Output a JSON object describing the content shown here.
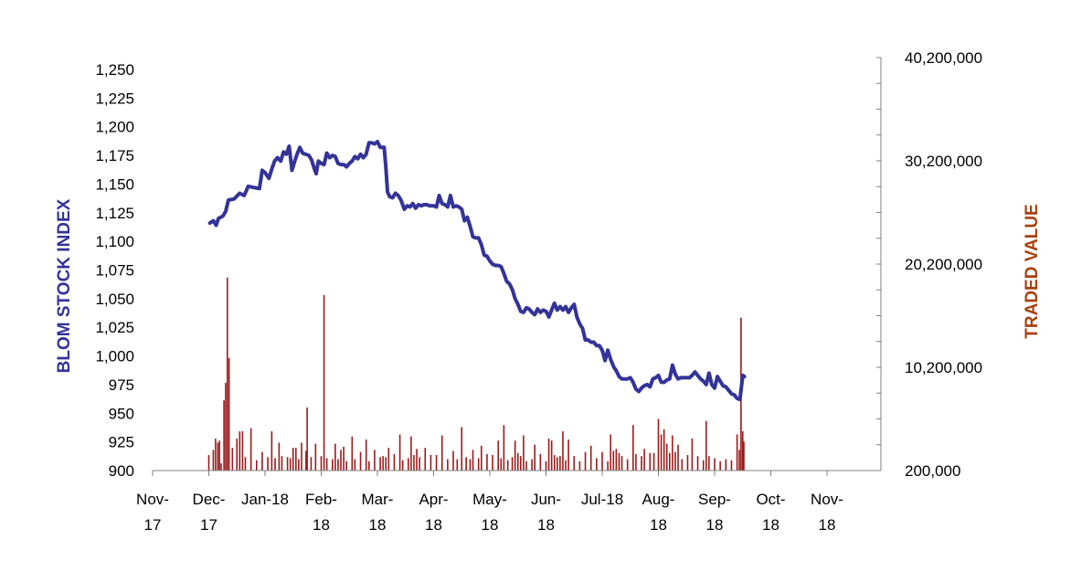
{
  "chart_data": {
    "type": "line+bar",
    "colors": {
      "index_line": "#333399",
      "volume_bars": "#9B1B1B",
      "left_title": "#333399",
      "right_title": "#A8400E",
      "axis": "#808080"
    },
    "x_tick_labels": [
      {
        "line1": "Nov-",
        "line2": "17"
      },
      {
        "line1": "Dec-",
        "line2": "17"
      },
      {
        "line1": "Jan-18",
        "line2": ""
      },
      {
        "line1": "Feb-",
        "line2": "18"
      },
      {
        "line1": "Mar-",
        "line2": "18"
      },
      {
        "line1": "Apr-",
        "line2": "18"
      },
      {
        "line1": "May-",
        "line2": "18"
      },
      {
        "line1": "Jun-",
        "line2": "18"
      },
      {
        "line1": "Jul-18",
        "line2": ""
      },
      {
        "line1": "Aug-",
        "line2": "18"
      },
      {
        "line1": "Sep-",
        "line2": "18"
      },
      {
        "line1": "Oct-",
        "line2": "18"
      },
      {
        "line1": "Nov-",
        "line2": "18"
      }
    ],
    "y_left": {
      "label": "BLOM STOCK INDEX",
      "range": [
        900,
        1250
      ],
      "ticks": [
        "900",
        "925",
        "950",
        "975",
        "1,000",
        "1,025",
        "1,050",
        "1,075",
        "1,100",
        "1,125",
        "1,150",
        "1,175",
        "1,200",
        "1,225",
        "1,250"
      ]
    },
    "y_right": {
      "label": "TRADED VALUE",
      "range": [
        200000,
        40200000
      ],
      "ticks": [
        "200,000",
        "10,200,000",
        "20,200,000",
        "30,200,000",
        "40,200,000"
      ]
    },
    "index_series": [
      [
        1.02,
        1116
      ],
      [
        1.08,
        1118
      ],
      [
        1.13,
        1114
      ],
      [
        1.17,
        1120
      ],
      [
        1.25,
        1122
      ],
      [
        1.3,
        1126
      ],
      [
        1.35,
        1136
      ],
      [
        1.45,
        1137
      ],
      [
        1.55,
        1142
      ],
      [
        1.63,
        1140
      ],
      [
        1.7,
        1148
      ],
      [
        1.8,
        1147
      ],
      [
        1.9,
        1146
      ],
      [
        1.95,
        1162
      ],
      [
        2.0,
        1160
      ],
      [
        2.07,
        1155
      ],
      [
        2.12,
        1163
      ],
      [
        2.17,
        1170
      ],
      [
        2.22,
        1173
      ],
      [
        2.28,
        1170
      ],
      [
        2.33,
        1178
      ],
      [
        2.38,
        1176
      ],
      [
        2.43,
        1183
      ],
      [
        2.48,
        1162
      ],
      [
        2.53,
        1170
      ],
      [
        2.57,
        1176
      ],
      [
        2.62,
        1182
      ],
      [
        2.67,
        1177
      ],
      [
        2.72,
        1176
      ],
      [
        2.78,
        1175
      ],
      [
        2.83,
        1171
      ],
      [
        2.88,
        1163
      ],
      [
        2.91,
        1159
      ],
      [
        2.95,
        1170
      ],
      [
        3.0,
        1168
      ],
      [
        3.05,
        1167
      ],
      [
        3.1,
        1177
      ],
      [
        3.15,
        1173
      ],
      [
        3.2,
        1175
      ],
      [
        3.25,
        1174
      ],
      [
        3.3,
        1168
      ],
      [
        3.35,
        1167
      ],
      [
        3.4,
        1167
      ],
      [
        3.45,
        1165
      ],
      [
        3.5,
        1168
      ],
      [
        3.55,
        1170
      ],
      [
        3.6,
        1174
      ],
      [
        3.65,
        1172
      ],
      [
        3.7,
        1176
      ],
      [
        3.75,
        1173
      ],
      [
        3.8,
        1176
      ],
      [
        3.85,
        1186
      ],
      [
        3.9,
        1186
      ],
      [
        3.95,
        1185
      ],
      [
        4.0,
        1187
      ],
      [
        4.05,
        1182
      ],
      [
        4.12,
        1182
      ],
      [
        4.15,
        1165
      ],
      [
        4.18,
        1143
      ],
      [
        4.22,
        1139
      ],
      [
        4.27,
        1138
      ],
      [
        4.32,
        1142
      ],
      [
        4.37,
        1140
      ],
      [
        4.42,
        1136
      ],
      [
        4.48,
        1128
      ],
      [
        4.53,
        1131
      ],
      [
        4.58,
        1130
      ],
      [
        4.63,
        1133
      ],
      [
        4.68,
        1129
      ],
      [
        4.73,
        1132
      ],
      [
        4.78,
        1131
      ],
      [
        4.83,
        1132
      ],
      [
        4.88,
        1132
      ],
      [
        4.93,
        1131
      ],
      [
        5.0,
        1131
      ],
      [
        5.05,
        1130
      ],
      [
        5.1,
        1140
      ],
      [
        5.15,
        1133
      ],
      [
        5.2,
        1132
      ],
      [
        5.25,
        1130
      ],
      [
        5.3,
        1140
      ],
      [
        5.35,
        1130
      ],
      [
        5.4,
        1131
      ],
      [
        5.45,
        1130
      ],
      [
        5.5,
        1128
      ],
      [
        5.55,
        1118
      ],
      [
        5.6,
        1121
      ],
      [
        5.65,
        1113
      ],
      [
        5.7,
        1104
      ],
      [
        5.75,
        1103
      ],
      [
        5.8,
        1103
      ],
      [
        5.85,
        1097
      ],
      [
        5.9,
        1088
      ],
      [
        5.95,
        1087
      ],
      [
        6.0,
        1083
      ],
      [
        6.05,
        1080
      ],
      [
        6.1,
        1079
      ],
      [
        6.15,
        1079
      ],
      [
        6.2,
        1078
      ],
      [
        6.25,
        1072
      ],
      [
        6.3,
        1065
      ],
      [
        6.35,
        1063
      ],
      [
        6.4,
        1058
      ],
      [
        6.45,
        1050
      ],
      [
        6.5,
        1045
      ],
      [
        6.55,
        1039
      ],
      [
        6.6,
        1038
      ],
      [
        6.65,
        1042
      ],
      [
        6.7,
        1041
      ],
      [
        6.75,
        1038
      ],
      [
        6.8,
        1036
      ],
      [
        6.85,
        1041
      ],
      [
        6.9,
        1038
      ],
      [
        6.95,
        1040
      ],
      [
        7.0,
        1039
      ],
      [
        7.05,
        1034
      ],
      [
        7.1,
        1040
      ],
      [
        7.15,
        1046
      ],
      [
        7.2,
        1040
      ],
      [
        7.25,
        1043
      ],
      [
        7.3,
        1040
      ],
      [
        7.35,
        1043
      ],
      [
        7.4,
        1038
      ],
      [
        7.45,
        1042
      ],
      [
        7.5,
        1045
      ],
      [
        7.55,
        1034
      ],
      [
        7.6,
        1028
      ],
      [
        7.65,
        1024
      ],
      [
        7.7,
        1014
      ],
      [
        7.75,
        1014
      ],
      [
        7.8,
        1012
      ],
      [
        7.85,
        1012
      ],
      [
        7.9,
        1009
      ],
      [
        7.95,
        1009
      ],
      [
        8.0,
        1005
      ],
      [
        8.05,
        996
      ],
      [
        8.1,
        1005
      ],
      [
        8.15,
        997
      ],
      [
        8.2,
        991
      ],
      [
        8.25,
        987
      ],
      [
        8.3,
        982
      ],
      [
        8.35,
        980
      ],
      [
        8.4,
        980
      ],
      [
        8.45,
        980
      ],
      [
        8.5,
        981
      ],
      [
        8.55,
        977
      ],
      [
        8.6,
        971
      ],
      [
        8.65,
        969
      ],
      [
        8.7,
        972
      ],
      [
        8.75,
        974
      ],
      [
        8.8,
        975
      ],
      [
        8.85,
        973
      ],
      [
        8.9,
        980
      ],
      [
        8.95,
        981
      ],
      [
        9.0,
        983
      ],
      [
        9.05,
        977
      ],
      [
        9.1,
        977
      ],
      [
        9.15,
        979
      ],
      [
        9.2,
        980
      ],
      [
        9.25,
        992
      ],
      [
        9.3,
        984
      ],
      [
        9.35,
        980
      ],
      [
        9.4,
        981
      ],
      [
        9.45,
        981
      ],
      [
        9.5,
        981
      ],
      [
        9.55,
        981
      ],
      [
        9.6,
        983
      ],
      [
        9.65,
        986
      ],
      [
        9.7,
        983
      ],
      [
        9.75,
        980
      ],
      [
        9.8,
        978
      ],
      [
        9.85,
        975
      ],
      [
        9.9,
        985
      ],
      [
        9.95,
        975
      ],
      [
        10.0,
        972
      ],
      [
        10.05,
        982
      ],
      [
        10.1,
        978
      ],
      [
        10.15,
        974
      ],
      [
        10.2,
        973
      ],
      [
        10.25,
        970
      ],
      [
        10.3,
        967
      ],
      [
        10.35,
        966
      ],
      [
        10.4,
        963
      ],
      [
        10.45,
        962
      ],
      [
        10.5,
        983
      ],
      [
        10.53,
        982
      ]
    ],
    "volume_series": [
      [
        1.0,
        1700000
      ],
      [
        1.08,
        2200000
      ],
      [
        1.12,
        3300000
      ],
      [
        1.16,
        2900000
      ],
      [
        1.19,
        3100000
      ],
      [
        1.22,
        900000
      ],
      [
        1.27,
        7000000
      ],
      [
        1.3,
        8700000
      ],
      [
        1.33,
        18900000
      ],
      [
        1.36,
        11100000
      ],
      [
        1.42,
        2400000
      ],
      [
        1.5,
        3300000
      ],
      [
        1.55,
        4000000
      ],
      [
        1.6,
        4000000
      ],
      [
        1.65,
        1500000
      ],
      [
        1.75,
        4300000
      ],
      [
        1.85,
        1200000
      ],
      [
        1.95,
        2000000
      ],
      [
        2.05,
        1500000
      ],
      [
        2.12,
        4000000
      ],
      [
        2.18,
        1400000
      ],
      [
        2.25,
        2900000
      ],
      [
        2.3,
        1600000
      ],
      [
        2.4,
        1500000
      ],
      [
        2.45,
        1400000
      ],
      [
        2.5,
        2400000
      ],
      [
        2.55,
        2400000
      ],
      [
        2.6,
        1300000
      ],
      [
        2.65,
        2900000
      ],
      [
        2.73,
        2100000
      ],
      [
        2.75,
        6300000
      ],
      [
        2.82,
        1500000
      ],
      [
        2.9,
        2800000
      ],
      [
        3.0,
        1600000
      ],
      [
        3.05,
        17200000
      ],
      [
        3.1,
        1400000
      ],
      [
        3.2,
        1300000
      ],
      [
        3.25,
        2800000
      ],
      [
        3.3,
        1300000
      ],
      [
        3.35,
        2200000
      ],
      [
        3.4,
        2500000
      ],
      [
        3.45,
        1100000
      ],
      [
        3.55,
        3500000
      ],
      [
        3.6,
        1300000
      ],
      [
        3.7,
        2000000
      ],
      [
        3.8,
        3200000
      ],
      [
        3.85,
        1100000
      ],
      [
        3.95,
        2200000
      ],
      [
        4.05,
        1500000
      ],
      [
        4.1,
        1600000
      ],
      [
        4.15,
        1500000
      ],
      [
        4.2,
        2400000
      ],
      [
        4.3,
        1800000
      ],
      [
        4.4,
        3700000
      ],
      [
        4.45,
        1200000
      ],
      [
        4.55,
        1400000
      ],
      [
        4.6,
        3500000
      ],
      [
        4.65,
        1700000
      ],
      [
        4.7,
        2300000
      ],
      [
        4.75,
        1500000
      ],
      [
        4.85,
        2400000
      ],
      [
        4.95,
        1700000
      ],
      [
        5.05,
        1700000
      ],
      [
        5.15,
        3600000
      ],
      [
        5.25,
        1300000
      ],
      [
        5.35,
        2100000
      ],
      [
        5.42,
        1300000
      ],
      [
        5.5,
        4400000
      ],
      [
        5.58,
        1500000
      ],
      [
        5.65,
        1300000
      ],
      [
        5.7,
        2200000
      ],
      [
        5.8,
        1400000
      ],
      [
        5.85,
        2600000
      ],
      [
        5.95,
        1800000
      ],
      [
        6.05,
        1700000
      ],
      [
        6.15,
        3100000
      ],
      [
        6.2,
        1400000
      ],
      [
        6.25,
        4600000
      ],
      [
        6.32,
        1200000
      ],
      [
        6.4,
        1500000
      ],
      [
        6.45,
        3100000
      ],
      [
        6.5,
        1900000
      ],
      [
        6.55,
        1600000
      ],
      [
        6.6,
        3600000
      ],
      [
        6.65,
        1100000
      ],
      [
        6.75,
        1300000
      ],
      [
        6.8,
        2700000
      ],
      [
        6.9,
        1800000
      ],
      [
        7.0,
        1100000
      ],
      [
        7.05,
        3300000
      ],
      [
        7.1,
        3100000
      ],
      [
        7.15,
        1700000
      ],
      [
        7.2,
        1500000
      ],
      [
        7.25,
        1600000
      ],
      [
        7.3,
        4000000
      ],
      [
        7.35,
        1200000
      ],
      [
        7.4,
        3200000
      ],
      [
        7.5,
        1600000
      ],
      [
        7.6,
        1100000
      ],
      [
        7.7,
        2000000
      ],
      [
        7.8,
        2600000
      ],
      [
        7.9,
        1400000
      ],
      [
        8.0,
        2000000
      ],
      [
        8.1,
        1100000
      ],
      [
        8.15,
        3700000
      ],
      [
        8.2,
        2100000
      ],
      [
        8.25,
        2300000
      ],
      [
        8.3,
        1900000
      ],
      [
        8.35,
        1600000
      ],
      [
        8.45,
        1300000
      ],
      [
        8.55,
        4600000
      ],
      [
        8.6,
        1800000
      ],
      [
        8.7,
        1600000
      ],
      [
        8.75,
        2300000
      ],
      [
        8.85,
        1900000
      ],
      [
        8.92,
        1900000
      ],
      [
        9.0,
        5200000
      ],
      [
        9.05,
        3700000
      ],
      [
        9.1,
        4200000
      ],
      [
        9.15,
        2800000
      ],
      [
        9.2,
        1900000
      ],
      [
        9.25,
        3600000
      ],
      [
        9.3,
        2000000
      ],
      [
        9.35,
        2700000
      ],
      [
        9.42,
        1300000
      ],
      [
        9.52,
        1700000
      ],
      [
        9.6,
        3300000
      ],
      [
        9.7,
        1600000
      ],
      [
        9.8,
        1200000
      ],
      [
        9.85,
        5000000
      ],
      [
        9.9,
        1600000
      ],
      [
        10.0,
        1400000
      ],
      [
        10.1,
        1100000
      ],
      [
        10.2,
        1300000
      ],
      [
        10.3,
        1200000
      ],
      [
        10.4,
        3700000
      ],
      [
        10.44,
        2200000
      ],
      [
        10.47,
        15000000
      ],
      [
        10.5,
        4000000
      ],
      [
        10.52,
        3000000
      ]
    ]
  }
}
